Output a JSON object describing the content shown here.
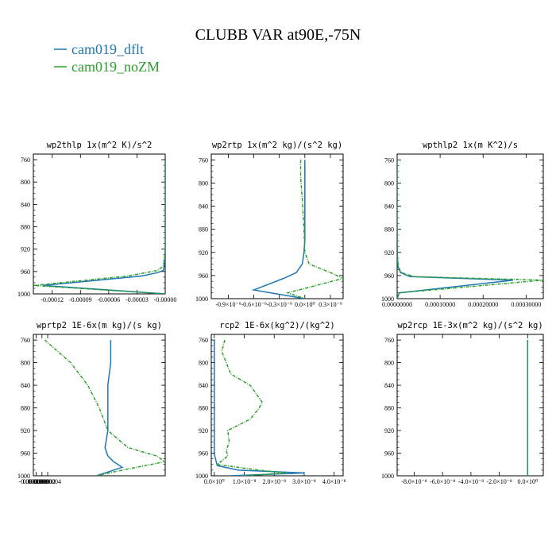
{
  "figure": {
    "title": "CLUBB VAR at90E,-75N",
    "legend": [
      {
        "name": "cam019_dflt",
        "color": "#1f77b4"
      },
      {
        "name": "cam019_noZM",
        "color": "#2ca02c"
      }
    ]
  },
  "chart_data": [
    {
      "type": "line",
      "title": "wp2thlp   1x(m^2 K)/s^2",
      "ylim": [
        1000,
        750
      ],
      "xlim": [
        -0.00014,
        0.0
      ],
      "yticks": [
        "760",
        "800",
        "840",
        "880",
        "920",
        "960",
        "1000"
      ],
      "ytick_values": [
        760,
        800,
        840,
        880,
        920,
        960,
        1000
      ],
      "xticks": [
        "-0.00012",
        "-0.00009",
        "-0.00006",
        "-0.00003",
        "-0.00000"
      ],
      "xtick_values": [
        -0.00012,
        -9e-05,
        -6e-05,
        -3e-05,
        0.0
      ],
      "series": [
        {
          "name": "cam019_dflt",
          "color": "#1f77b4",
          "dashed": false,
          "x": [
            0.0,
            0.0,
            0.0,
            0.0,
            0.0,
            -5e-07,
            -1e-06,
            -2e-06,
            -8e-06,
            -2.5e-05,
            -0.00013,
            0.0
          ],
          "y": [
            760,
            800,
            840,
            880,
            920,
            940,
            950,
            958,
            962,
            968,
            985,
            1000
          ]
        },
        {
          "name": "cam019_noZM",
          "color": "#2ca02c",
          "dashed": true,
          "x": [
            0.0,
            0.0,
            0.0,
            0.0,
            0.0,
            -1e-06,
            -2e-06,
            -8e-06,
            -2e-05,
            -4e-05,
            -0.00014,
            0.0
          ],
          "y": [
            760,
            800,
            840,
            880,
            920,
            940,
            950,
            958,
            962,
            968,
            985,
            1000
          ]
        }
      ]
    },
    {
      "type": "line",
      "title": "wp2rtp   1x(m^2 kg)/(s^2 kg)",
      "ylim": [
        1000,
        750
      ],
      "xlim": [
        -1.1e-09,
        4.5e-10
      ],
      "yticks": [
        "760",
        "800",
        "840",
        "880",
        "920",
        "960",
        "1000"
      ],
      "ytick_values": [
        760,
        800,
        840,
        880,
        920,
        960,
        1000
      ],
      "xticks": [
        "-0.9×10⁻⁹",
        "-0.6×10⁻⁹",
        "-0.3×10⁻⁹",
        "0.0×10⁰",
        "0.3×10⁻⁹"
      ],
      "xtick_values": [
        -9e-10,
        -6e-10,
        -3e-10,
        0.0,
        3e-10
      ],
      "series": [
        {
          "name": "cam019_dflt",
          "color": "#1f77b4",
          "dashed": false,
          "x": [
            0.0,
            0.0,
            0.0,
            0.0,
            -1e-11,
            -3e-11,
            -1e-10,
            -2.5e-10,
            -6e-10,
            0.0
          ],
          "y": [
            760,
            800,
            860,
            900,
            920,
            940,
            955,
            965,
            985,
            1000
          ]
        },
        {
          "name": "cam019_noZM",
          "color": "#2ca02c",
          "dashed": true,
          "x": [
            -5e-11,
            -5e-11,
            -3e-11,
            -1e-11,
            0.0,
            5e-11,
            3e-10,
            4.5e-10,
            -2e-10,
            0.0
          ],
          "y": [
            760,
            790,
            830,
            880,
            920,
            940,
            955,
            965,
            990,
            1000
          ]
        }
      ]
    },
    {
      "type": "line",
      "title": "wpthlp2   1x(m K^2)/s",
      "ylim": [
        1000,
        750
      ],
      "xlim": [
        0.0,
        0.00034
      ],
      "yticks": [
        "760",
        "800",
        "840",
        "880",
        "920",
        "960",
        "1000"
      ],
      "ytick_values": [
        760,
        800,
        840,
        880,
        920,
        960,
        1000
      ],
      "xticks": [
        "0.00000000",
        "0.00010000",
        "0.00020000",
        "0.00030000"
      ],
      "xtick_values": [
        0.0,
        0.0001,
        0.0002,
        0.0003
      ],
      "series": [
        {
          "name": "cam019_dflt",
          "color": "#1f77b4",
          "dashed": false,
          "x": [
            0.0,
            0.0,
            0.0,
            5e-07,
            2e-06,
            8e-06,
            3e-05,
            0.00027,
            5e-06,
            0.0
          ],
          "y": [
            760,
            800,
            880,
            930,
            945,
            955,
            962,
            968,
            990,
            1000
          ]
        },
        {
          "name": "cam019_noZM",
          "color": "#2ca02c",
          "dashed": true,
          "x": [
            0.0,
            0.0,
            0.0,
            1e-06,
            3e-06,
            1e-05,
            4e-05,
            0.00034,
            5e-06,
            0.0
          ],
          "y": [
            760,
            800,
            880,
            930,
            945,
            955,
            962,
            968,
            990,
            1000
          ]
        }
      ]
    },
    {
      "type": "line",
      "title": "wprtp2   1E-6x(m kg)/(s kg)",
      "ylim": [
        1000,
        750
      ],
      "xlim": [
        -1e-07,
        4.5e-06
      ],
      "yticks": [
        "760",
        "800",
        "840",
        "880",
        "920",
        "960",
        "1000"
      ],
      "ytick_values": [
        760,
        800,
        840,
        880,
        920,
        960,
        1000
      ],
      "xticks": [
        "-0.0000001",
        "0.0000000",
        "0.0000002",
        "0.0000004"
      ],
      "xtick_values": [
        -1e-07,
        0.0,
        2e-07,
        4e-07
      ],
      "series": [
        {
          "name": "cam019_dflt",
          "color": "#1f77b4",
          "dashed": false,
          "x": [
            2.6e-06,
            2.6e-06,
            2.5e-06,
            2.5e-06,
            2.5e-06,
            2.4e-06,
            2.5e-06,
            2.7e-06,
            3e-06,
            2.1e-06
          ],
          "y": [
            760,
            800,
            840,
            880,
            920,
            950,
            965,
            975,
            985,
            1000
          ]
        },
        {
          "name": "cam019_noZM",
          "color": "#2ca02c",
          "dashed": true,
          "x": [
            3e-07,
            1.2e-06,
            1.8e-06,
            2.2e-06,
            2.5e-06,
            3.2e-06,
            4.2e-06,
            4.5e-06,
            3e-06,
            2.1e-06
          ],
          "y": [
            760,
            800,
            840,
            880,
            920,
            950,
            965,
            975,
            990,
            1000
          ]
        }
      ]
    },
    {
      "type": "line",
      "title": "rcp2   1E-6x(kg^2)/(kg^2)",
      "ylim": [
        1000,
        750
      ],
      "xlim": [
        -1e-09,
        4.3e-08
      ],
      "yticks": [
        "760",
        "800",
        "840",
        "880",
        "920",
        "960",
        "1000"
      ],
      "ytick_values": [
        760,
        800,
        840,
        880,
        920,
        960,
        1000
      ],
      "xticks": [
        "0.0×10⁰",
        "1.0×10⁻⁸",
        "2.0×10⁻⁸",
        "3.0×10⁻⁸",
        "4.0×10⁻⁸"
      ],
      "xtick_values": [
        0.0,
        1e-08,
        2e-08,
        3e-08,
        4e-08
      ],
      "series": [
        {
          "name": "cam019_dflt",
          "color": "#1f77b4",
          "dashed": false,
          "x": [
            0.0,
            0.0,
            0.0,
            0.0,
            0.0,
            0.0,
            2e-11,
            5e-10,
            1e-09,
            8e-09,
            3e-08,
            5e-09
          ],
          "y": [
            760,
            800,
            840,
            880,
            920,
            950,
            962,
            972,
            982,
            990,
            995,
            1000
          ]
        },
        {
          "name": "cam019_noZM",
          "color": "#2ca02c",
          "dashed": true,
          "x": [
            3.5e-09,
            2.5e-09,
            4e-09,
            5.5e-09,
            1.2e-08,
            1.6e-08,
            1.5e-08,
            1.2e-08,
            4.5e-09,
            5e-09,
            4e-09,
            4.5e-09,
            1e-09,
            1.5e-08,
            2.4e-08,
            1e-08
          ],
          "y": [
            760,
            780,
            800,
            820,
            840,
            870,
            880,
            900,
            920,
            940,
            955,
            965,
            980,
            990,
            995,
            1000
          ]
        }
      ]
    },
    {
      "type": "line",
      "title": "wp2rcp   1E-3x(m^2 kg)/(s^2 kg)",
      "ylim": [
        1000,
        750
      ],
      "xlim": [
        -9.2e-08,
        1.1e-08
      ],
      "yticks": [
        "760",
        "800",
        "840",
        "880",
        "920",
        "960",
        "1000"
      ],
      "ytick_values": [
        760,
        800,
        840,
        880,
        920,
        960,
        1000
      ],
      "xticks": [
        "-8.0×10⁻⁸",
        "-6.0×10⁻⁸",
        "-4.0×10⁻⁸",
        "-2.0×10⁻⁸",
        "0.0×10⁰"
      ],
      "xtick_values": [
        -8e-08,
        -6e-08,
        -4e-08,
        -2e-08,
        0.0
      ],
      "series": [
        {
          "name": "cam019_dflt",
          "color": "#1f77b4",
          "dashed": false,
          "x": [
            0.0,
            0.0,
            0.0,
            0.0,
            0.0
          ],
          "y": [
            760,
            840,
            920,
            960,
            1000
          ]
        },
        {
          "name": "cam019_noZM",
          "color": "#2ca02c",
          "dashed": true,
          "x": [
            0.0,
            0.0,
            0.0,
            0.0,
            0.0
          ],
          "y": [
            760,
            840,
            920,
            960,
            1000
          ]
        }
      ]
    }
  ]
}
